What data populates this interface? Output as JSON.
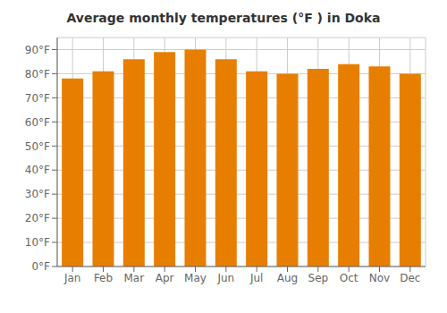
{
  "chart_data": {
    "type": "bar",
    "title": "Average monthly temperatures (°F ) in Doka",
    "categories": [
      "Jan",
      "Feb",
      "Mar",
      "Apr",
      "May",
      "Jun",
      "Jul",
      "Aug",
      "Sep",
      "Oct",
      "Nov",
      "Dec"
    ],
    "values": [
      78,
      81,
      86,
      89,
      90,
      86,
      81,
      80,
      82,
      84,
      83,
      80
    ],
    "color": "#E87E00",
    "ylim": [
      0,
      95
    ],
    "yticks": [
      {
        "value": 0,
        "label": "0°F"
      },
      {
        "value": 10,
        "label": "10°F"
      },
      {
        "value": 20,
        "label": "20°F"
      },
      {
        "value": 30,
        "label": "30°F"
      },
      {
        "value": 40,
        "label": "40°F"
      },
      {
        "value": 50,
        "label": "50°F"
      },
      {
        "value": 60,
        "label": "60°F"
      },
      {
        "value": 70,
        "label": "70°F"
      },
      {
        "value": 80,
        "label": "80°F"
      },
      {
        "value": 90,
        "label": "90°F"
      }
    ],
    "grid": true
  }
}
